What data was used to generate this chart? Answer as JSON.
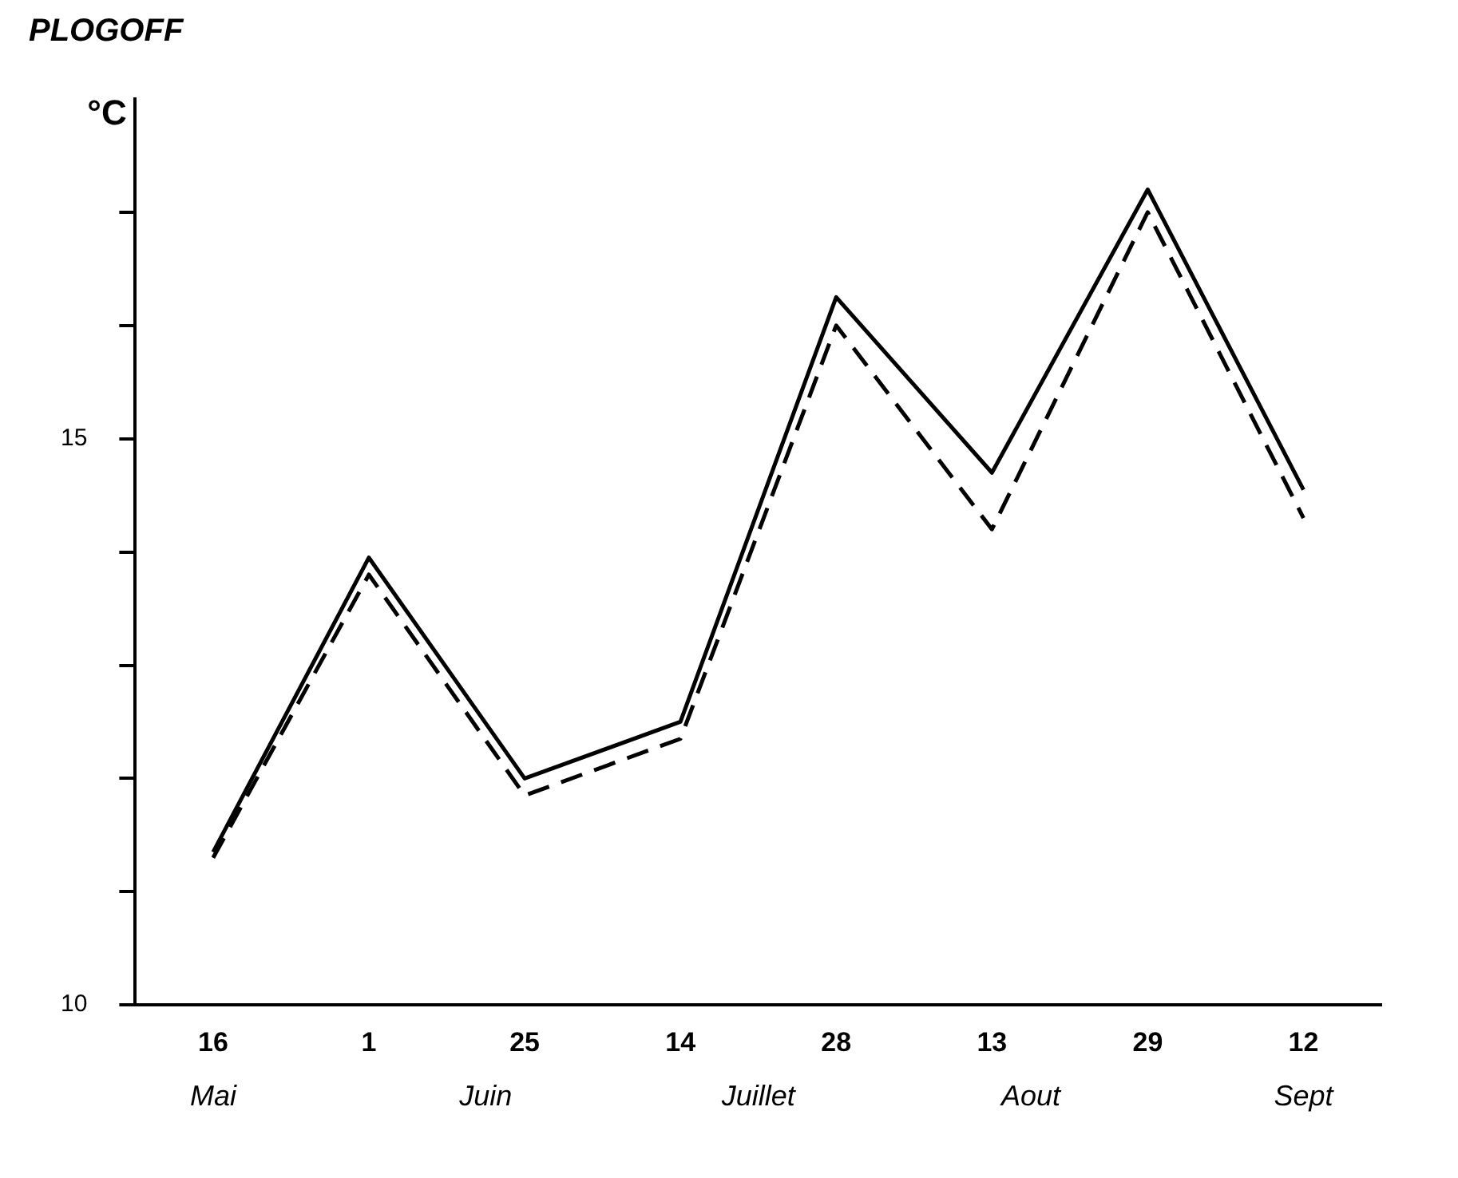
{
  "chart_data": {
    "type": "line",
    "title": "PLOGOFF",
    "ylabel": "°C",
    "categories": [
      "16",
      "1",
      "25",
      "14",
      "28",
      "13",
      "29",
      "12"
    ],
    "series": [
      {
        "color": "#000000",
        "line_style": "solid",
        "values": [
          11.35,
          13.95,
          12.0,
          12.5,
          16.25,
          14.7,
          17.2,
          14.55
        ]
      },
      {
        "color": "#000000",
        "line_style": "dashed",
        "values": [
          11.3,
          13.8,
          11.85,
          12.35,
          16.0,
          14.2,
          17.0,
          14.3
        ]
      }
    ],
    "ylim": [
      10,
      18
    ],
    "yticks": [
      10,
      {
        "value": 11,
        "label": null
      },
      {
        "value": 12,
        "label": null
      },
      {
        "value": 13,
        "label": null
      },
      {
        "value": 14,
        "label": null
      },
      15,
      {
        "value": 16,
        "label": null
      },
      {
        "value": 17,
        "label": null
      }
    ],
    "annotations": [
      "Mai",
      "Juin",
      "Juillet",
      "Aout",
      "Sept"
    ],
    "grid": false,
    "legend": false,
    "marker": "none"
  }
}
